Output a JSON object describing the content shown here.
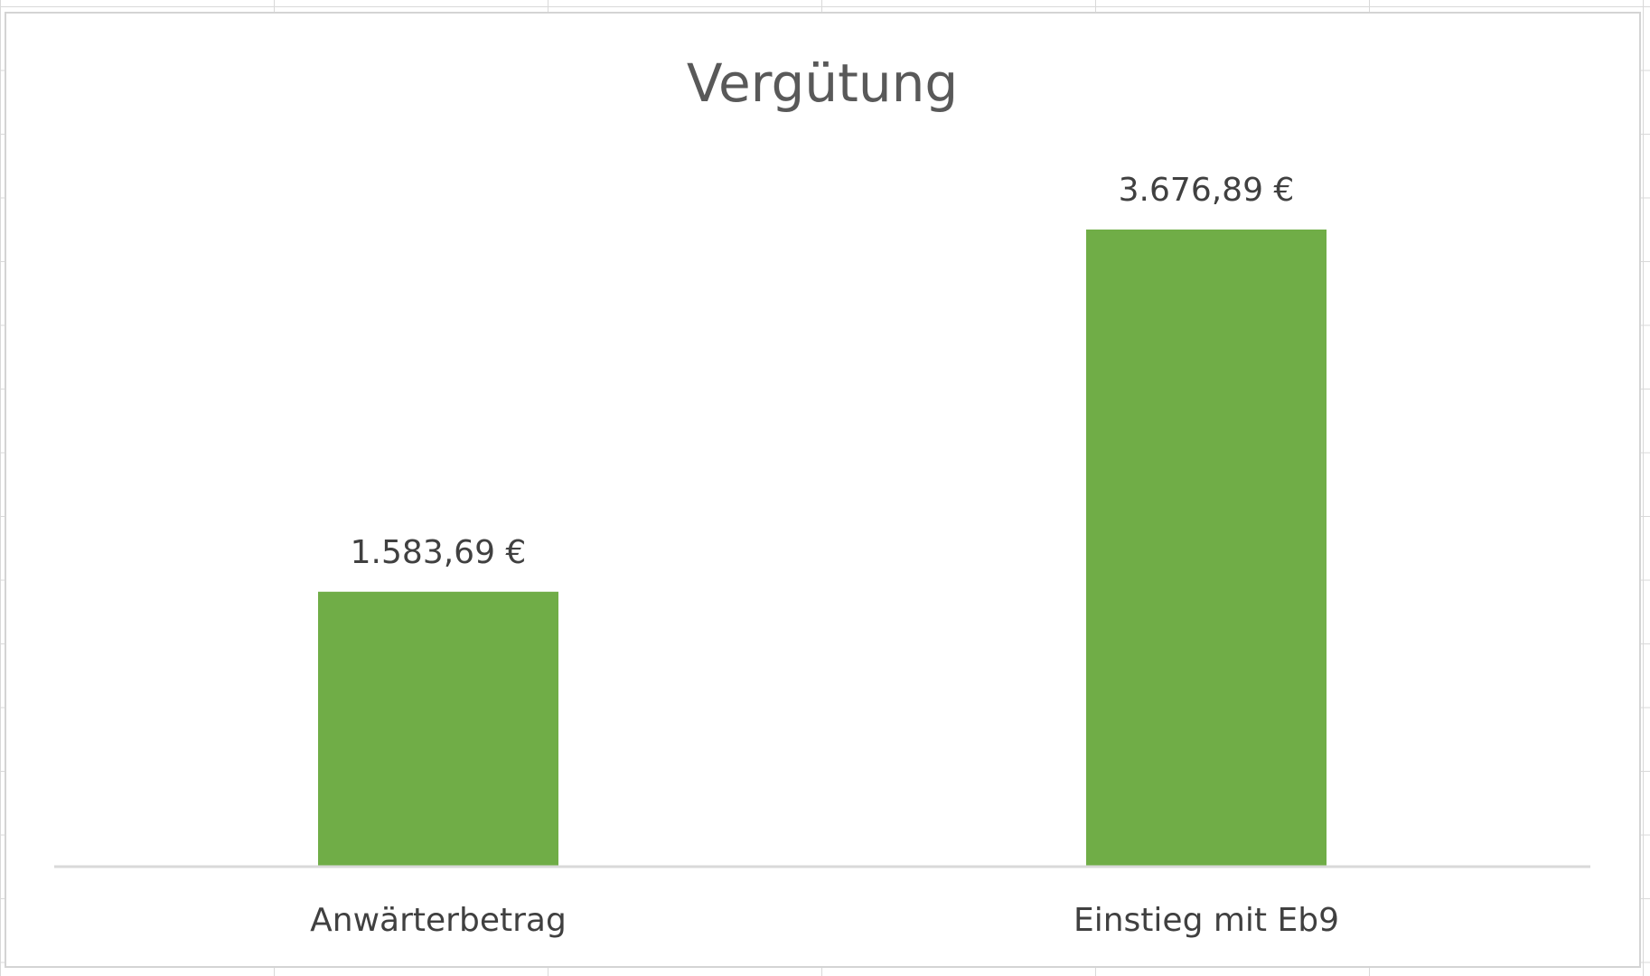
{
  "chart_data": {
    "type": "bar",
    "title": "Vergütung",
    "categories": [
      "Anwärterbetrag",
      "Einstieg mit Eb9"
    ],
    "values": [
      1583.69,
      3676.89
    ],
    "data_labels": [
      "1.583,69 €",
      "3.676,89 €"
    ],
    "ylim": [
      0,
      3676.89
    ],
    "grid": false,
    "legend": "none",
    "bar_color": "#70AD47",
    "axis_color": "#D9D9D9"
  }
}
